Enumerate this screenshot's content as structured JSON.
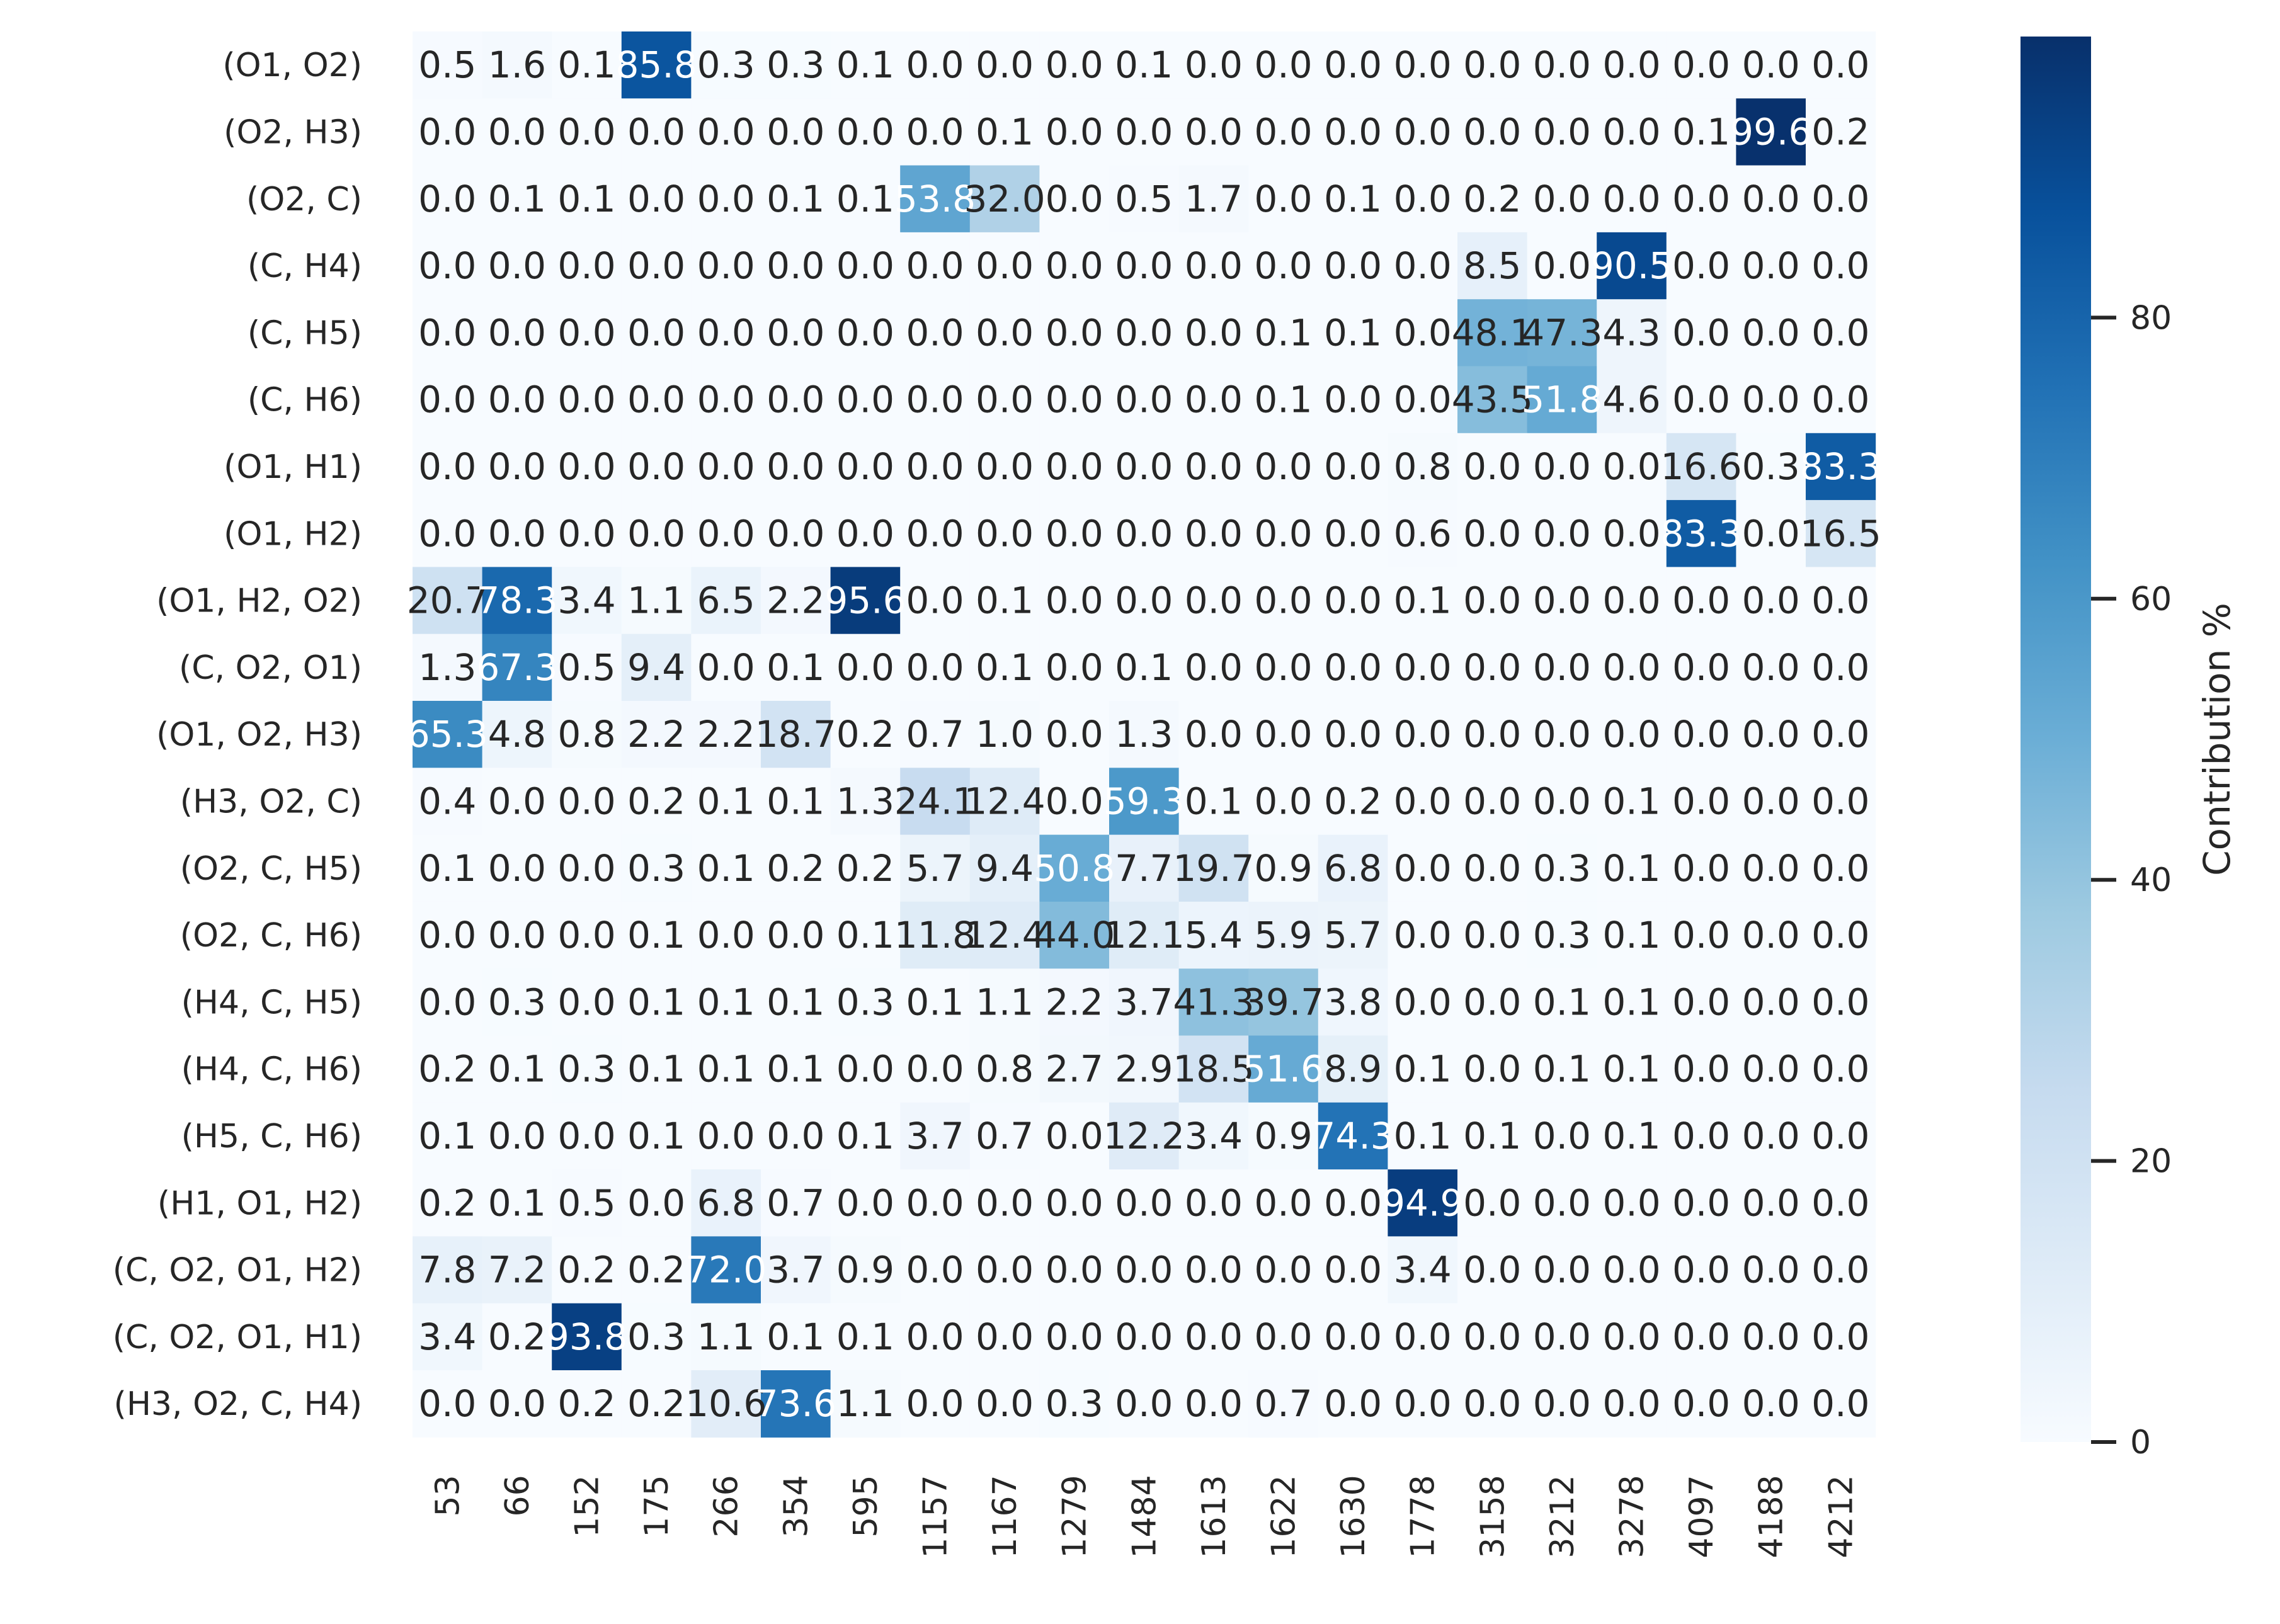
{
  "chart_data": {
    "type": "heatmap",
    "title": "",
    "xlabel": "",
    "ylabel": "",
    "colormap": "Blues",
    "color_low": "#f7fbff",
    "color_high": "#08306b",
    "value_range": [
      0,
      100
    ],
    "x_categories": [
      "53",
      "66",
      "152",
      "175",
      "266",
      "354",
      "595",
      "1157",
      "1167",
      "1279",
      "1484",
      "1613",
      "1622",
      "1630",
      "1778",
      "3158",
      "3212",
      "3278",
      "4097",
      "4188",
      "4212"
    ],
    "y_categories": [
      "(O1, O2)",
      "(O2, H3)",
      "(O2, C)",
      "(C, H4)",
      "(C, H5)",
      "(C, H6)",
      "(O1, H1)",
      "(O1, H2)",
      "(O1, H2, O2)",
      "(C, O2, O1)",
      "(O1, O2, H3)",
      "(H3, O2, C)",
      "(O2, C, H5)",
      "(O2, C, H6)",
      "(H4, C, H5)",
      "(H4, C, H6)",
      "(H5, C, H6)",
      "(H1, O1, H2)",
      "(C, O2, O1, H2)",
      "(C, O2, O1, H1)",
      "(H3, O2, C, H4)"
    ],
    "values": [
      [
        0.5,
        1.6,
        0.1,
        85.8,
        0.3,
        0.3,
        0.1,
        0.0,
        0.0,
        0.0,
        0.1,
        0.0,
        0.0,
        0.0,
        0.0,
        0.0,
        0.0,
        0.0,
        0.0,
        0.0,
        0.0
      ],
      [
        0.0,
        0.0,
        0.0,
        0.0,
        0.0,
        0.0,
        0.0,
        0.0,
        0.1,
        0.0,
        0.0,
        0.0,
        0.0,
        0.0,
        0.0,
        0.0,
        0.0,
        0.0,
        0.1,
        99.6,
        0.2
      ],
      [
        0.0,
        0.1,
        0.1,
        0.0,
        0.0,
        0.1,
        0.1,
        53.8,
        32.0,
        0.0,
        0.5,
        1.7,
        0.0,
        0.1,
        0.0,
        0.2,
        0.0,
        0.0,
        0.0,
        0.0,
        0.0
      ],
      [
        0.0,
        0.0,
        0.0,
        0.0,
        0.0,
        0.0,
        0.0,
        0.0,
        0.0,
        0.0,
        0.0,
        0.0,
        0.0,
        0.0,
        0.0,
        8.5,
        0.0,
        90.5,
        0.0,
        0.0,
        0.0
      ],
      [
        0.0,
        0.0,
        0.0,
        0.0,
        0.0,
        0.0,
        0.0,
        0.0,
        0.0,
        0.0,
        0.0,
        0.0,
        0.1,
        0.1,
        0.0,
        48.1,
        47.3,
        4.3,
        0.0,
        0.0,
        0.0
      ],
      [
        0.0,
        0.0,
        0.0,
        0.0,
        0.0,
        0.0,
        0.0,
        0.0,
        0.0,
        0.0,
        0.0,
        0.0,
        0.1,
        0.0,
        0.0,
        43.5,
        51.8,
        4.6,
        0.0,
        0.0,
        0.0
      ],
      [
        0.0,
        0.0,
        0.0,
        0.0,
        0.0,
        0.0,
        0.0,
        0.0,
        0.0,
        0.0,
        0.0,
        0.0,
        0.0,
        0.0,
        0.8,
        0.0,
        0.0,
        0.0,
        16.6,
        0.3,
        83.3
      ],
      [
        0.0,
        0.0,
        0.0,
        0.0,
        0.0,
        0.0,
        0.0,
        0.0,
        0.0,
        0.0,
        0.0,
        0.0,
        0.0,
        0.0,
        0.6,
        0.0,
        0.0,
        0.0,
        83.3,
        0.0,
        16.5
      ],
      [
        20.7,
        78.3,
        3.4,
        1.1,
        6.5,
        2.2,
        95.6,
        0.0,
        0.1,
        0.0,
        0.0,
        0.0,
        0.0,
        0.0,
        0.1,
        0.0,
        0.0,
        0.0,
        0.0,
        0.0,
        0.0
      ],
      [
        1.3,
        67.3,
        0.5,
        9.4,
        0.0,
        0.1,
        0.0,
        0.0,
        0.1,
        0.0,
        0.1,
        0.0,
        0.0,
        0.0,
        0.0,
        0.0,
        0.0,
        0.0,
        0.0,
        0.0,
        0.0
      ],
      [
        65.3,
        4.8,
        0.8,
        2.2,
        2.2,
        18.7,
        0.2,
        0.7,
        1.0,
        0.0,
        1.3,
        0.0,
        0.0,
        0.0,
        0.0,
        0.0,
        0.0,
        0.0,
        0.0,
        0.0,
        0.0
      ],
      [
        0.4,
        0.0,
        0.0,
        0.2,
        0.1,
        0.1,
        1.3,
        24.1,
        12.4,
        0.0,
        59.3,
        0.1,
        0.0,
        0.2,
        0.0,
        0.0,
        0.0,
        0.1,
        0.0,
        0.0,
        0.0
      ],
      [
        0.1,
        0.0,
        0.0,
        0.3,
        0.1,
        0.2,
        0.2,
        5.7,
        9.4,
        50.8,
        7.7,
        19.7,
        0.9,
        6.8,
        0.0,
        0.0,
        0.3,
        0.1,
        0.0,
        0.0,
        0.0
      ],
      [
        0.0,
        0.0,
        0.0,
        0.1,
        0.0,
        0.0,
        0.1,
        11.8,
        12.4,
        44.0,
        12.1,
        5.4,
        5.9,
        5.7,
        0.0,
        0.0,
        0.3,
        0.1,
        0.0,
        0.0,
        0.0
      ],
      [
        0.0,
        0.3,
        0.0,
        0.1,
        0.1,
        0.1,
        0.3,
        0.1,
        1.1,
        2.2,
        3.7,
        41.3,
        39.7,
        3.8,
        0.0,
        0.0,
        0.1,
        0.1,
        0.0,
        0.0,
        0.0
      ],
      [
        0.2,
        0.1,
        0.3,
        0.1,
        0.1,
        0.1,
        0.0,
        0.0,
        0.8,
        2.7,
        2.9,
        18.5,
        51.6,
        8.9,
        0.1,
        0.0,
        0.1,
        0.1,
        0.0,
        0.0,
        0.0
      ],
      [
        0.1,
        0.0,
        0.0,
        0.1,
        0.0,
        0.0,
        0.1,
        3.7,
        0.7,
        0.0,
        12.2,
        3.4,
        0.9,
        74.3,
        0.1,
        0.1,
        0.0,
        0.1,
        0.0,
        0.0,
        0.0
      ],
      [
        0.2,
        0.1,
        0.5,
        0.0,
        6.8,
        0.7,
        0.0,
        0.0,
        0.0,
        0.0,
        0.0,
        0.0,
        0.0,
        0.0,
        94.9,
        0.0,
        0.0,
        0.0,
        0.0,
        0.0,
        0.0
      ],
      [
        7.8,
        7.2,
        0.2,
        0.2,
        72.0,
        3.7,
        0.9,
        0.0,
        0.0,
        0.0,
        0.0,
        0.0,
        0.0,
        0.0,
        3.4,
        0.0,
        0.0,
        0.0,
        0.0,
        0.0,
        0.0
      ],
      [
        3.4,
        0.2,
        93.8,
        0.3,
        1.1,
        0.1,
        0.1,
        0.0,
        0.0,
        0.0,
        0.0,
        0.0,
        0.0,
        0.0,
        0.0,
        0.0,
        0.0,
        0.0,
        0.0,
        0.0,
        0.0
      ],
      [
        0.0,
        0.0,
        0.2,
        0.2,
        10.6,
        73.6,
        1.1,
        0.0,
        0.0,
        0.3,
        0.0,
        0.0,
        0.7,
        0.0,
        0.0,
        0.0,
        0.0,
        0.0,
        0.0,
        0.0,
        0.0
      ]
    ],
    "colorbar": {
      "label": "Contribution %",
      "ticks": [
        0,
        20,
        40,
        60,
        80
      ]
    }
  }
}
